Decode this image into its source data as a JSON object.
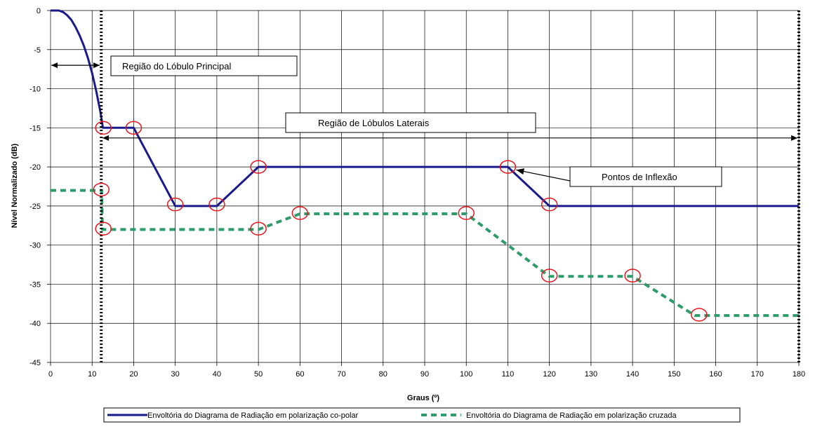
{
  "chart_data": {
    "type": "line",
    "xlabel": "Graus (º)",
    "ylabel": "Nível Normalizado (dB)",
    "xlim": [
      0,
      180
    ],
    "ylim": [
      -45,
      0
    ],
    "x_ticks": [
      0,
      10,
      20,
      30,
      40,
      50,
      60,
      70,
      80,
      90,
      100,
      110,
      120,
      130,
      140,
      150,
      160,
      170,
      180
    ],
    "y_ticks": [
      0,
      -5,
      -10,
      -15,
      -20,
      -25,
      -30,
      -35,
      -40,
      -45
    ],
    "grid": true,
    "legend_position": "bottom",
    "series": [
      {
        "name": "Envoltória do Diagrama de Radiação em polarização co-polar",
        "color": "#1a1a8c",
        "style": "solid",
        "points": [
          [
            0,
            0
          ],
          [
            2,
            0
          ],
          [
            3,
            -0.2
          ],
          [
            4,
            -0.6
          ],
          [
            5,
            -1.2
          ],
          [
            6,
            -2.1
          ],
          [
            7,
            -3.2
          ],
          [
            8,
            -4.5
          ],
          [
            9,
            -6.1
          ],
          [
            10,
            -8.0
          ],
          [
            11,
            -10.3
          ],
          [
            12,
            -13.0
          ],
          [
            12.6,
            -15
          ],
          [
            20,
            -15
          ],
          [
            30,
            -25
          ],
          [
            40,
            -25
          ],
          [
            50,
            -20
          ],
          [
            110,
            -20
          ],
          [
            120,
            -25
          ],
          [
            180,
            -25
          ]
        ]
      },
      {
        "name": "Envoltória do Diagrama de Radiação em polarização cruzada",
        "color": "#2e9b6a",
        "style": "dashed",
        "points": [
          [
            0,
            -23
          ],
          [
            12.3,
            -23
          ],
          [
            12.5,
            -28
          ],
          [
            50,
            -28
          ],
          [
            60,
            -26
          ],
          [
            100,
            -26
          ],
          [
            120,
            -34
          ],
          [
            140,
            -34
          ],
          [
            155,
            -39
          ],
          [
            180,
            -39
          ]
        ]
      }
    ],
    "markers": [
      [
        12.7,
        -15
      ],
      [
        20,
        -15
      ],
      [
        30,
        -24.8
      ],
      [
        40,
        -24.8
      ],
      [
        50,
        -20
      ],
      [
        110,
        -20
      ],
      [
        120,
        -24.8
      ],
      [
        12.2,
        -22.9
      ],
      [
        12.7,
        -27.9
      ],
      [
        50,
        -27.9
      ],
      [
        60,
        -25.9
      ],
      [
        100,
        -25.9
      ],
      [
        120,
        -33.9
      ],
      [
        140,
        -33.9
      ],
      [
        156,
        -38.9
      ]
    ],
    "marker_color": "#e8141b",
    "vlines": [
      12.2,
      180
    ],
    "annotations": [
      {
        "text": "Região do Lóbulo Principal",
        "arrow_x": [
          0,
          12
        ]
      },
      {
        "text": "Região de Lóbulos Laterais",
        "arrow_x": [
          12.5,
          180
        ]
      },
      {
        "text": "Pontos de Inflexão",
        "arrow_to": [
          111,
          -20.2
        ]
      }
    ]
  }
}
